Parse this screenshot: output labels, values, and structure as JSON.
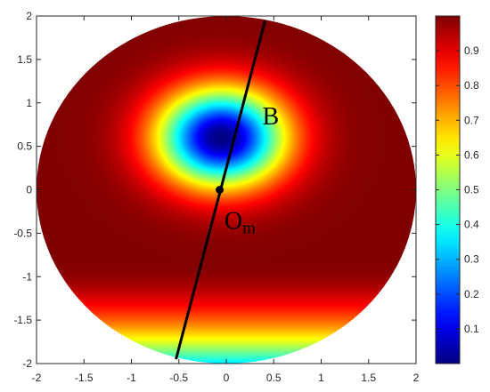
{
  "chart_data": {
    "type": "heatmap",
    "shape": "disk",
    "disk_radius": 2,
    "xlim": [
      -2,
      2
    ],
    "ylim": [
      -2,
      2
    ],
    "x_ticks": [
      -2,
      -1.5,
      -1,
      -0.5,
      0,
      0.5,
      1,
      1.5,
      2
    ],
    "y_ticks": [
      -2,
      -1.5,
      -1,
      -0.5,
      0,
      0.5,
      1,
      1.5,
      2
    ],
    "x_tick_labels": [
      "-2",
      "-1.5",
      "-1",
      "-0.5",
      "0",
      "0.5",
      "1",
      "1.5",
      "2"
    ],
    "y_tick_labels": [
      "-2",
      "-1.5",
      "-1",
      "-0.5",
      "0",
      "0.5",
      "1",
      "1.5",
      "2"
    ],
    "grid": false,
    "colormap": "jet",
    "clim": [
      0,
      1
    ],
    "colorbar_ticks": [
      0.1,
      0.2,
      0.3,
      0.4,
      0.5,
      0.6,
      0.7,
      0.8,
      0.9
    ],
    "colorbar_tick_labels": [
      "0.1",
      "0.2",
      "0.3",
      "0.4",
      "0.5",
      "0.6",
      "0.7",
      "0.8",
      "0.9"
    ],
    "field_minimum": [
      -0.05,
      0.6
    ],
    "field_maximum_band_y": -0.8,
    "line": {
      "x": [
        -0.53,
        0.41
      ],
      "y": [
        -1.95,
        1.95
      ],
      "color": "#000000"
    },
    "point": {
      "x": -0.07,
      "y": 0.0,
      "color": "#000000"
    },
    "annotations": [
      {
        "text": "B",
        "x": 0.38,
        "y": 0.75
      },
      {
        "text": "O",
        "subscript": "m",
        "x": -0.02,
        "y": -0.45
      }
    ]
  }
}
